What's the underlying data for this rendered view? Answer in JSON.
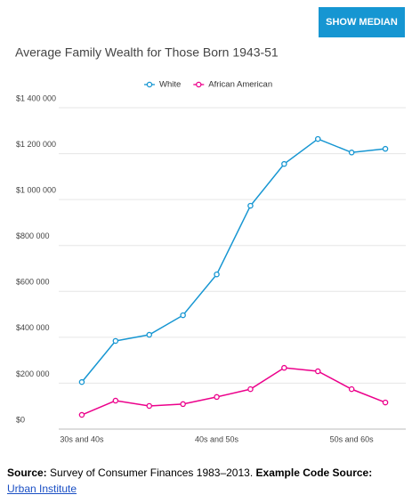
{
  "button": {
    "label": "SHOW MEDIAN"
  },
  "chart_data": {
    "type": "line",
    "title": "Average Family Wealth for Those Born 1943-51",
    "categories": [
      "30s and 40s",
      null,
      null,
      null,
      "40s and 50s",
      null,
      null,
      null,
      "50s and 60s",
      null
    ],
    "series": [
      {
        "name": "White",
        "color": "#1696d2",
        "values": [
          205000,
          384000,
          411000,
          496000,
          674000,
          973000,
          1155000,
          1264000,
          1205000,
          1221000
        ]
      },
      {
        "name": "African American",
        "color": "#ec008b",
        "values": [
          62000,
          124000,
          101000,
          109000,
          140000,
          174000,
          267000,
          252000,
          174000,
          116000
        ]
      }
    ],
    "ylim": [
      0,
      1400000
    ],
    "yticks": [
      {
        "value": 0,
        "label": "$0"
      },
      {
        "value": 200000,
        "label": "$200 000"
      },
      {
        "value": 400000,
        "label": "$400 000"
      },
      {
        "value": 600000,
        "label": "$600 000"
      },
      {
        "value": 800000,
        "label": "$800 000"
      },
      {
        "value": 1000000,
        "label": "$1 000 000"
      },
      {
        "value": 1200000,
        "label": "$1 200 000"
      },
      {
        "value": 1400000,
        "label": "$1 400 000"
      }
    ],
    "grid": true,
    "legend": "top"
  },
  "footer": {
    "source_label": "Source:",
    "source_text": "Survey of Consumer Finances 1983–2013.",
    "code_label": "Example Code Source:",
    "link": "Urban Institute"
  }
}
